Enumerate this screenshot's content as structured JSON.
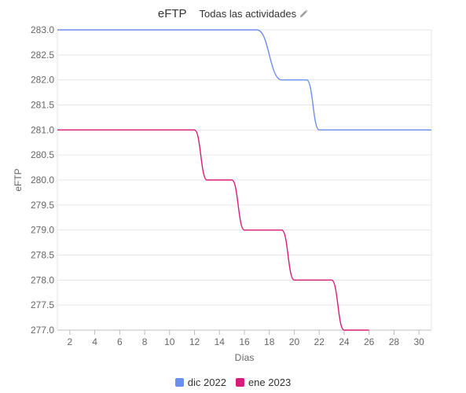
{
  "header": {
    "title": "eFTP",
    "filter_label": "Todas las actividades",
    "filter_icon": "pencil-icon"
  },
  "chart_data": {
    "type": "line",
    "title": "eFTP",
    "xlabel": "Días",
    "ylabel": "eFTP",
    "xlim": [
      1,
      31
    ],
    "ylim": [
      277.0,
      283.0
    ],
    "x_ticks": [
      2,
      4,
      6,
      8,
      10,
      12,
      14,
      16,
      18,
      20,
      22,
      24,
      26,
      28,
      30
    ],
    "y_ticks": [
      "283.0",
      "282.5",
      "282.0",
      "281.5",
      "281.0",
      "280.5",
      "280.0",
      "279.5",
      "279.0",
      "278.5",
      "278.0",
      "277.5",
      "277.0"
    ],
    "grid": true,
    "legend_position": "bottom",
    "series": [
      {
        "name": "dic 2022",
        "color": "#6b8ff0",
        "x": [
          1,
          17,
          19,
          21,
          22,
          31
        ],
        "y": [
          283,
          283,
          282,
          282,
          281,
          281
        ]
      },
      {
        "name": "ene 2023",
        "color": "#d81b7a",
        "x": [
          1,
          12,
          13,
          15,
          16,
          17,
          19,
          20,
          21,
          23,
          24,
          26
        ],
        "y": [
          281,
          281,
          280,
          280,
          279,
          279,
          279,
          278,
          278,
          278,
          277,
          277
        ]
      }
    ]
  }
}
